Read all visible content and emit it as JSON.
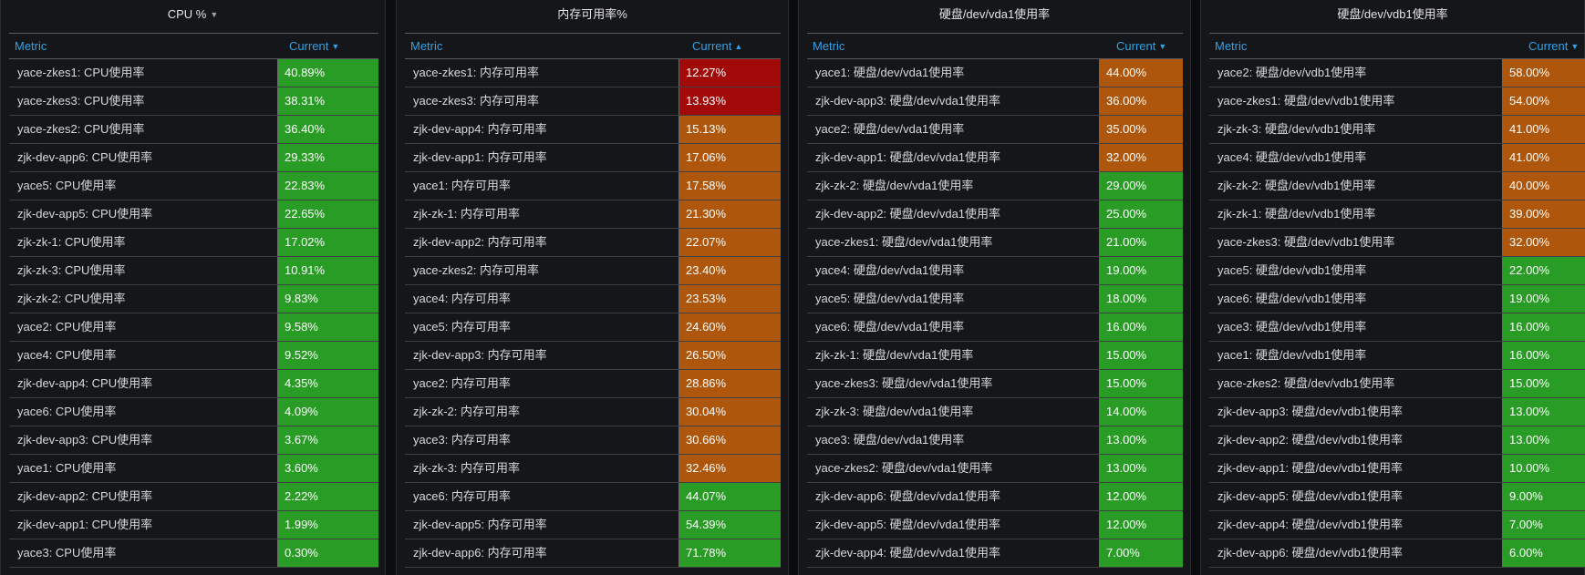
{
  "header": {
    "metric": "Metric",
    "current": "Current"
  },
  "panels": [
    {
      "title": "CPU %",
      "sort": "desc",
      "rows": [
        {
          "metric": "yace-zkes1: CPU使用率",
          "value": "40.89%",
          "status": "green"
        },
        {
          "metric": "yace-zkes3: CPU使用率",
          "value": "38.31%",
          "status": "green"
        },
        {
          "metric": "yace-zkes2: CPU使用率",
          "value": "36.40%",
          "status": "green"
        },
        {
          "metric": "zjk-dev-app6: CPU使用率",
          "value": "29.33%",
          "status": "green"
        },
        {
          "metric": "yace5: CPU使用率",
          "value": "22.83%",
          "status": "green"
        },
        {
          "metric": "zjk-dev-app5: CPU使用率",
          "value": "22.65%",
          "status": "green"
        },
        {
          "metric": "zjk-zk-1: CPU使用率",
          "value": "17.02%",
          "status": "green"
        },
        {
          "metric": "zjk-zk-3: CPU使用率",
          "value": "10.91%",
          "status": "green"
        },
        {
          "metric": "zjk-zk-2: CPU使用率",
          "value": "9.83%",
          "status": "green"
        },
        {
          "metric": "yace2: CPU使用率",
          "value": "9.58%",
          "status": "green"
        },
        {
          "metric": "yace4: CPU使用率",
          "value": "9.52%",
          "status": "green"
        },
        {
          "metric": "zjk-dev-app4: CPU使用率",
          "value": "4.35%",
          "status": "green"
        },
        {
          "metric": "yace6: CPU使用率",
          "value": "4.09%",
          "status": "green"
        },
        {
          "metric": "zjk-dev-app3: CPU使用率",
          "value": "3.67%",
          "status": "green"
        },
        {
          "metric": "yace1: CPU使用率",
          "value": "3.60%",
          "status": "green"
        },
        {
          "metric": "zjk-dev-app2: CPU使用率",
          "value": "2.22%",
          "status": "green"
        },
        {
          "metric": "zjk-dev-app1: CPU使用率",
          "value": "1.99%",
          "status": "green"
        },
        {
          "metric": "yace3: CPU使用率",
          "value": "0.30%",
          "status": "green"
        }
      ]
    },
    {
      "title": "内存可用率%",
      "sort": "asc",
      "rows": [
        {
          "metric": "yace-zkes1: 内存可用率",
          "value": "12.27%",
          "status": "red"
        },
        {
          "metric": "yace-zkes3: 内存可用率",
          "value": "13.93%",
          "status": "red"
        },
        {
          "metric": "zjk-dev-app4: 内存可用率",
          "value": "15.13%",
          "status": "orange"
        },
        {
          "metric": "zjk-dev-app1: 内存可用率",
          "value": "17.06%",
          "status": "orange"
        },
        {
          "metric": "yace1: 内存可用率",
          "value": "17.58%",
          "status": "orange"
        },
        {
          "metric": "zjk-zk-1: 内存可用率",
          "value": "21.30%",
          "status": "orange"
        },
        {
          "metric": "zjk-dev-app2: 内存可用率",
          "value": "22.07%",
          "status": "orange"
        },
        {
          "metric": "yace-zkes2: 内存可用率",
          "value": "23.40%",
          "status": "orange"
        },
        {
          "metric": "yace4: 内存可用率",
          "value": "23.53%",
          "status": "orange"
        },
        {
          "metric": "yace5: 内存可用率",
          "value": "24.60%",
          "status": "orange"
        },
        {
          "metric": "zjk-dev-app3: 内存可用率",
          "value": "26.50%",
          "status": "orange"
        },
        {
          "metric": "yace2: 内存可用率",
          "value": "28.86%",
          "status": "orange"
        },
        {
          "metric": "zjk-zk-2: 内存可用率",
          "value": "30.04%",
          "status": "orange"
        },
        {
          "metric": "yace3: 内存可用率",
          "value": "30.66%",
          "status": "orange"
        },
        {
          "metric": "zjk-zk-3: 内存可用率",
          "value": "32.46%",
          "status": "orange"
        },
        {
          "metric": "yace6: 内存可用率",
          "value": "44.07%",
          "status": "green"
        },
        {
          "metric": "zjk-dev-app5: 内存可用率",
          "value": "54.39%",
          "status": "green"
        },
        {
          "metric": "zjk-dev-app6: 内存可用率",
          "value": "71.78%",
          "status": "green"
        }
      ]
    },
    {
      "title": "硬盘/dev/vda1使用率",
      "sort": "desc",
      "rows": [
        {
          "metric": "yace1: 硬盘/dev/vda1使用率",
          "value": "44.00%",
          "status": "orange"
        },
        {
          "metric": "zjk-dev-app3: 硬盘/dev/vda1使用率",
          "value": "36.00%",
          "status": "orange"
        },
        {
          "metric": "yace2: 硬盘/dev/vda1使用率",
          "value": "35.00%",
          "status": "orange"
        },
        {
          "metric": "zjk-dev-app1: 硬盘/dev/vda1使用率",
          "value": "32.00%",
          "status": "orange"
        },
        {
          "metric": "zjk-zk-2: 硬盘/dev/vda1使用率",
          "value": "29.00%",
          "status": "green"
        },
        {
          "metric": "zjk-dev-app2: 硬盘/dev/vda1使用率",
          "value": "25.00%",
          "status": "green"
        },
        {
          "metric": "yace-zkes1: 硬盘/dev/vda1使用率",
          "value": "21.00%",
          "status": "green"
        },
        {
          "metric": "yace4: 硬盘/dev/vda1使用率",
          "value": "19.00%",
          "status": "green"
        },
        {
          "metric": "yace5: 硬盘/dev/vda1使用率",
          "value": "18.00%",
          "status": "green"
        },
        {
          "metric": "yace6: 硬盘/dev/vda1使用率",
          "value": "16.00%",
          "status": "green"
        },
        {
          "metric": "zjk-zk-1: 硬盘/dev/vda1使用率",
          "value": "15.00%",
          "status": "green"
        },
        {
          "metric": "yace-zkes3: 硬盘/dev/vda1使用率",
          "value": "15.00%",
          "status": "green"
        },
        {
          "metric": "zjk-zk-3: 硬盘/dev/vda1使用率",
          "value": "14.00%",
          "status": "green"
        },
        {
          "metric": "yace3: 硬盘/dev/vda1使用率",
          "value": "13.00%",
          "status": "green"
        },
        {
          "metric": "yace-zkes2: 硬盘/dev/vda1使用率",
          "value": "13.00%",
          "status": "green"
        },
        {
          "metric": "zjk-dev-app6: 硬盘/dev/vda1使用率",
          "value": "12.00%",
          "status": "green"
        },
        {
          "metric": "zjk-dev-app5: 硬盘/dev/vda1使用率",
          "value": "12.00%",
          "status": "green"
        },
        {
          "metric": "zjk-dev-app4: 硬盘/dev/vda1使用率",
          "value": "7.00%",
          "status": "green"
        }
      ]
    },
    {
      "title": "硬盘/dev/vdb1使用率",
      "sort": "desc",
      "rows": [
        {
          "metric": "yace2: 硬盘/dev/vdb1使用率",
          "value": "58.00%",
          "status": "orange"
        },
        {
          "metric": "yace-zkes1: 硬盘/dev/vdb1使用率",
          "value": "54.00%",
          "status": "orange"
        },
        {
          "metric": "zjk-zk-3: 硬盘/dev/vdb1使用率",
          "value": "41.00%",
          "status": "orange"
        },
        {
          "metric": "yace4: 硬盘/dev/vdb1使用率",
          "value": "41.00%",
          "status": "orange"
        },
        {
          "metric": "zjk-zk-2: 硬盘/dev/vdb1使用率",
          "value": "40.00%",
          "status": "orange"
        },
        {
          "metric": "zjk-zk-1: 硬盘/dev/vdb1使用率",
          "value": "39.00%",
          "status": "orange"
        },
        {
          "metric": "yace-zkes3: 硬盘/dev/vdb1使用率",
          "value": "32.00%",
          "status": "orange"
        },
        {
          "metric": "yace5: 硬盘/dev/vdb1使用率",
          "value": "22.00%",
          "status": "green"
        },
        {
          "metric": "yace6: 硬盘/dev/vdb1使用率",
          "value": "19.00%",
          "status": "green"
        },
        {
          "metric": "yace3: 硬盘/dev/vdb1使用率",
          "value": "16.00%",
          "status": "green"
        },
        {
          "metric": "yace1: 硬盘/dev/vdb1使用率",
          "value": "16.00%",
          "status": "green"
        },
        {
          "metric": "yace-zkes2: 硬盘/dev/vdb1使用率",
          "value": "15.00%",
          "status": "green"
        },
        {
          "metric": "zjk-dev-app3: 硬盘/dev/vdb1使用率",
          "value": "13.00%",
          "status": "green"
        },
        {
          "metric": "zjk-dev-app2: 硬盘/dev/vdb1使用率",
          "value": "13.00%",
          "status": "green"
        },
        {
          "metric": "zjk-dev-app1: 硬盘/dev/vdb1使用率",
          "value": "10.00%",
          "status": "green"
        },
        {
          "metric": "zjk-dev-app5: 硬盘/dev/vdb1使用率",
          "value": "9.00%",
          "status": "green"
        },
        {
          "metric": "zjk-dev-app4: 硬盘/dev/vdb1使用率",
          "value": "7.00%",
          "status": "green"
        },
        {
          "metric": "zjk-dev-app6: 硬盘/dev/vdb1使用率",
          "value": "6.00%",
          "status": "green"
        }
      ]
    }
  ]
}
